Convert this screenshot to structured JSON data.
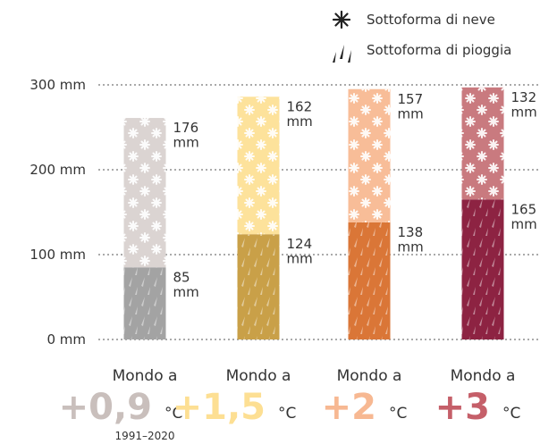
{
  "chart_data": {
    "type": "bar",
    "stacked": true,
    "category_prefix": "Mondo a",
    "categories": [
      "+0,9",
      "+1,5",
      "+2",
      "+3"
    ],
    "category_unit": "°C",
    "category_colors": [
      "#c9bfbc",
      "#fddf93",
      "#f7b892",
      "#c55f69"
    ],
    "note": "1991–2020",
    "series": [
      {
        "name": "Sottoforma di pioggia",
        "pattern": "rain",
        "colors": [
          "#a3a3a3",
          "#c9a048",
          "#da7637",
          "#8d2342"
        ],
        "values": [
          85,
          124,
          138,
          165
        ],
        "value_labels": [
          "85 mm",
          "124 mm",
          "138 mm",
          "165 mm"
        ]
      },
      {
        "name": "Sottoforma di neve",
        "pattern": "snow",
        "colors": [
          "#dbd4d2",
          "#fde29b",
          "#f8bd98",
          "#c97a7f"
        ],
        "values": [
          176,
          162,
          157,
          132
        ],
        "value_labels": [
          "176 mm",
          "162 mm",
          "157 mm",
          "132 mm"
        ]
      }
    ],
    "ylim": [
      0,
      300
    ],
    "yticks": [
      {
        "value": 0,
        "label": "0 mm"
      },
      {
        "value": 100,
        "label": "100 mm"
      },
      {
        "value": 200,
        "label": "200 mm"
      },
      {
        "value": 300,
        "label": "300 mm"
      }
    ],
    "grid": true
  }
}
